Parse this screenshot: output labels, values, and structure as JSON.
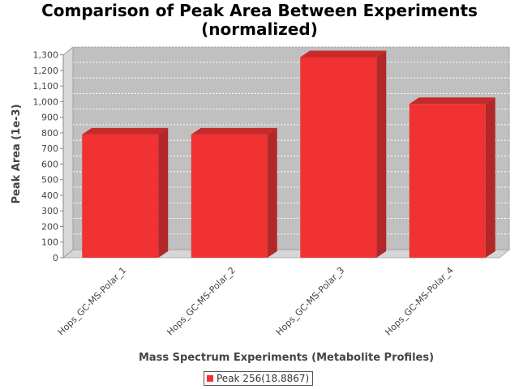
{
  "chart_data": {
    "type": "bar",
    "title": [
      "Comparison of Peak Area Between Experiments",
      "(normalized)"
    ],
    "xlabel": "Mass Spectrum Experiments (Metabolite Profiles)",
    "ylabel": "Peak Area (1e-3)",
    "categories": [
      "Hops_GC-MS-Polar_1",
      "Hops_GC-MS-Polar_2",
      "Hops_GC-MS-Polar_3",
      "Hops_GC-MS-Polar_4"
    ],
    "series": [
      {
        "name": "Peak 256(18.8867)",
        "values": [
          790,
          790,
          1285,
          985
        ],
        "color": "#f03232"
      }
    ],
    "ylim": [
      0,
      1350
    ],
    "yticks": [
      0,
      100,
      200,
      300,
      400,
      500,
      600,
      700,
      800,
      900,
      1000,
      1100,
      1200,
      1300
    ],
    "ytick_labels": [
      "0",
      "100",
      "200",
      "300",
      "400",
      "500",
      "600",
      "700",
      "800",
      "900",
      "1,000",
      "1,100",
      "1,200",
      "1,300"
    ],
    "grid": true,
    "legend": "bottom-center"
  }
}
